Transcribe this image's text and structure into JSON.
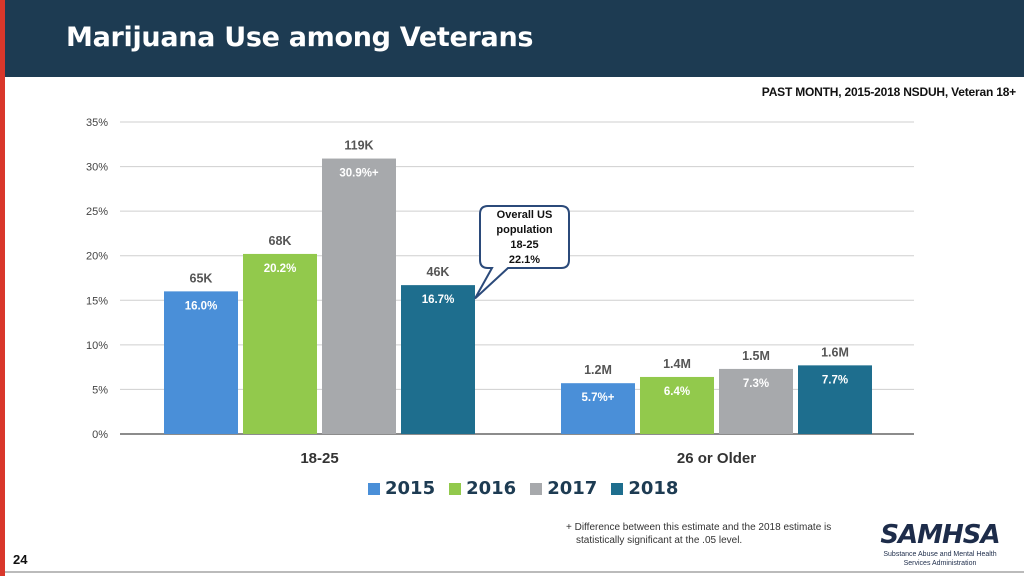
{
  "header": {
    "title": "Marijuana Use among Veterans"
  },
  "subtitle": "PAST MONTH, 2015-2018  NSDUH, Veteran 18+",
  "colors": {
    "header_bg": "#1d3b52",
    "accent_red": "#d9372b",
    "s2015": "#4a8fd8",
    "s2016": "#92c94c",
    "s2017": "#a7a9ac",
    "s2018": "#1e6e8e"
  },
  "chart_data": {
    "type": "bar",
    "categories": [
      "18-25",
      "26 or Older"
    ],
    "series": [
      {
        "name": "2015",
        "values": [
          16.0,
          5.7
        ],
        "value_labels": [
          "16.0%",
          "5.7%+"
        ],
        "counts": [
          "65K",
          "1.2M"
        ]
      },
      {
        "name": "2016",
        "values": [
          20.2,
          6.4
        ],
        "value_labels": [
          "20.2%",
          "6.4%"
        ],
        "counts": [
          "68K",
          "1.4M"
        ]
      },
      {
        "name": "2017",
        "values": [
          30.9,
          7.3
        ],
        "value_labels": [
          "30.9%+",
          "7.3%"
        ],
        "counts": [
          "119K",
          "1.5M"
        ]
      },
      {
        "name": "2018",
        "values": [
          16.7,
          7.7
        ],
        "value_labels": [
          "16.7%",
          "7.7%"
        ],
        "counts": [
          "46K",
          "1.6M"
        ]
      }
    ],
    "ylim": [
      0,
      35
    ],
    "yticks": [
      0,
      5,
      10,
      15,
      20,
      25,
      30,
      35
    ],
    "ytick_labels": [
      "0%",
      "5%",
      "10%",
      "15%",
      "20%",
      "25%",
      "30%",
      "35%"
    ],
    "grid": true,
    "legend": "bottom",
    "annotation": {
      "lines": [
        "Overall US",
        "population",
        "18-25",
        "22.1%"
      ],
      "value": 22.1
    }
  },
  "footnote": {
    "line1": "+ Difference between this estimate and the 2018 estimate is",
    "line2": "statistically significant at the .05 level."
  },
  "page_number": "24",
  "logo": {
    "name": "SAMHSA",
    "sub1": "Substance Abuse and Mental Health",
    "sub2": "Services Administration"
  }
}
